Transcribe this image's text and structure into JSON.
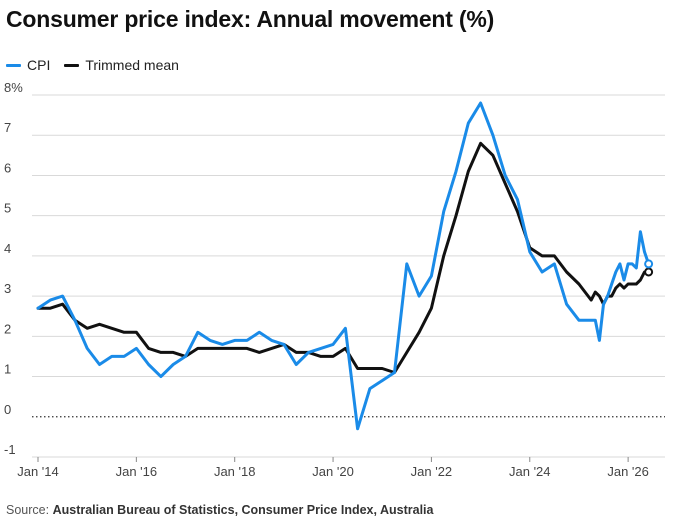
{
  "title": "Consumer price index: Annual movement (%)",
  "source": {
    "prefix": "Source:",
    "text": "Australian Bureau of Statistics, Consumer Price Index, Australia"
  },
  "colors": {
    "cpi": "#1a8be8",
    "trimmed": "#111111",
    "grid": "#d9d9d9",
    "zero": "#333333"
  },
  "chart_data": {
    "type": "line",
    "title": "Consumer price index: Annual movement (%)",
    "xlabel": "",
    "ylabel": "",
    "ylim": [
      -1,
      8
    ],
    "y_ticks": [
      {
        "value": 8,
        "label": "8%"
      },
      {
        "value": 7,
        "label": "7"
      },
      {
        "value": 6,
        "label": "6"
      },
      {
        "value": 5,
        "label": "5"
      },
      {
        "value": 4,
        "label": "4"
      },
      {
        "value": 3,
        "label": "3"
      },
      {
        "value": 2,
        "label": "2"
      },
      {
        "value": 1,
        "label": "1"
      },
      {
        "value": 0,
        "label": "0"
      },
      {
        "value": -1,
        "label": "-1"
      }
    ],
    "x_ticks": [
      {
        "value": 2014.0,
        "label": "Jan '14"
      },
      {
        "value": 2016.0,
        "label": "Jan '16"
      },
      {
        "value": 2018.0,
        "label": "Jan '18"
      },
      {
        "value": 2020.0,
        "label": "Jan '20"
      },
      {
        "value": 2022.0,
        "label": "Jan '22"
      },
      {
        "value": 2024.0,
        "label": "Jan '24"
      },
      {
        "value": 2026.0,
        "label": "Jan '26"
      }
    ],
    "xlim": [
      2014.0,
      2026.75
    ],
    "grid": true,
    "legend": "top-left",
    "series": [
      {
        "name": "CPI",
        "color": "#1a8be8",
        "end_marker": "hollow",
        "x": [
          2014.0,
          2014.25,
          2014.5,
          2014.75,
          2015.0,
          2015.25,
          2015.5,
          2015.75,
          2016.0,
          2016.25,
          2016.5,
          2016.75,
          2017.0,
          2017.25,
          2017.5,
          2017.75,
          2018.0,
          2018.25,
          2018.5,
          2018.75,
          2019.0,
          2019.25,
          2019.5,
          2019.75,
          2020.0,
          2020.25,
          2020.5,
          2020.75,
          2021.0,
          2021.25,
          2021.5,
          2021.75,
          2022.0,
          2022.25,
          2022.5,
          2022.75,
          2023.0,
          2023.25,
          2023.5,
          2023.75,
          2024.0,
          2024.25,
          2024.5,
          2024.75,
          2025.0,
          2025.25,
          2025.333,
          2025.417,
          2025.5,
          2025.583,
          2025.667,
          2025.75,
          2025.833,
          2025.917,
          2026.0,
          2026.083,
          2026.167,
          2026.25,
          2026.333,
          2026.417
        ],
        "y": [
          2.7,
          2.9,
          3.0,
          2.4,
          1.7,
          1.3,
          1.5,
          1.5,
          1.7,
          1.3,
          1.0,
          1.3,
          1.5,
          2.1,
          1.9,
          1.8,
          1.9,
          1.9,
          2.1,
          1.9,
          1.8,
          1.3,
          1.6,
          1.7,
          1.8,
          2.2,
          -0.3,
          0.7,
          0.9,
          1.1,
          3.8,
          3.0,
          3.5,
          5.1,
          6.1,
          7.3,
          7.8,
          7.0,
          6.0,
          5.4,
          4.1,
          3.6,
          3.8,
          2.8,
          2.4,
          2.4,
          2.4,
          1.9,
          2.8,
          3.0,
          3.3,
          3.6,
          3.8,
          3.4,
          3.8,
          3.8,
          3.7,
          4.6,
          4.1,
          3.8
        ]
      },
      {
        "name": "Trimmed mean",
        "color": "#111111",
        "end_marker": "filled",
        "x": [
          2014.0,
          2014.25,
          2014.5,
          2014.75,
          2015.0,
          2015.25,
          2015.5,
          2015.75,
          2016.0,
          2016.25,
          2016.5,
          2016.75,
          2017.0,
          2017.25,
          2017.5,
          2017.75,
          2018.0,
          2018.25,
          2018.5,
          2018.75,
          2019.0,
          2019.25,
          2019.5,
          2019.75,
          2020.0,
          2020.25,
          2020.5,
          2020.75,
          2021.0,
          2021.25,
          2021.5,
          2021.75,
          2022.0,
          2022.25,
          2022.5,
          2022.75,
          2023.0,
          2023.25,
          2023.5,
          2023.75,
          2024.0,
          2024.25,
          2024.5,
          2024.75,
          2025.0,
          2025.25,
          2025.333,
          2025.417,
          2025.5,
          2025.583,
          2025.667,
          2025.75,
          2025.833,
          2025.917,
          2026.0,
          2026.083,
          2026.167,
          2026.25,
          2026.333,
          2026.417
        ],
        "y": [
          2.7,
          2.7,
          2.8,
          2.4,
          2.2,
          2.3,
          2.2,
          2.1,
          2.1,
          1.7,
          1.6,
          1.6,
          1.5,
          1.7,
          1.7,
          1.7,
          1.7,
          1.7,
          1.6,
          1.7,
          1.8,
          1.6,
          1.6,
          1.5,
          1.5,
          1.7,
          1.2,
          1.2,
          1.2,
          1.1,
          1.6,
          2.1,
          2.7,
          4.0,
          5.0,
          6.1,
          6.8,
          6.5,
          5.8,
          5.1,
          4.2,
          4.0,
          4.0,
          3.6,
          3.3,
          2.9,
          3.1,
          3.0,
          2.8,
          3.0,
          3.0,
          3.2,
          3.3,
          3.2,
          3.3,
          3.3,
          3.3,
          3.4,
          3.6,
          3.6
        ]
      }
    ]
  }
}
